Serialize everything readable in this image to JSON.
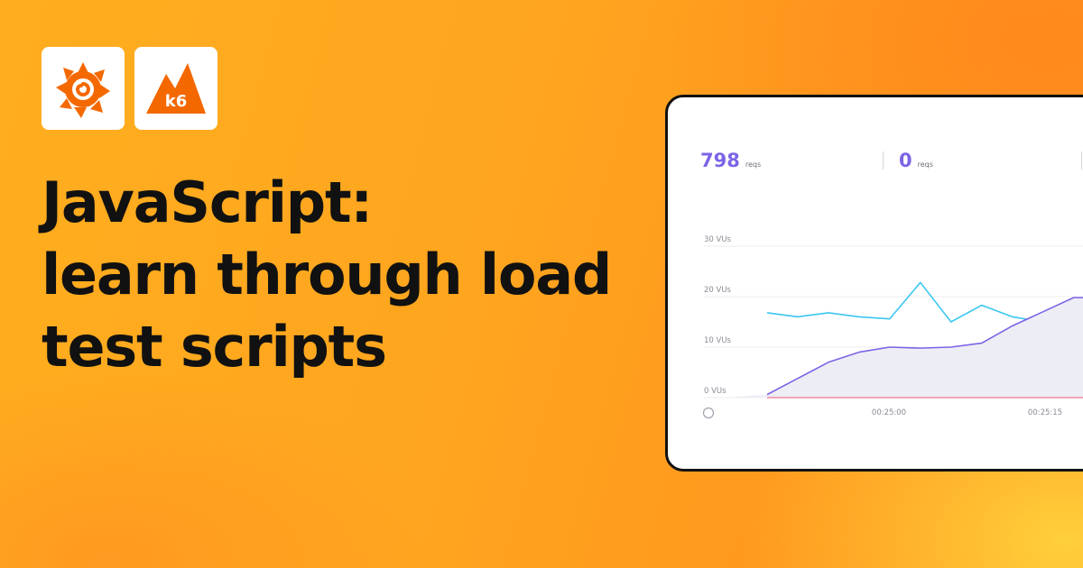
{
  "logos": {
    "first": {
      "icon": "grafana-icon",
      "color": "#f46800"
    },
    "second": {
      "icon": "k6-icon",
      "text": "k6",
      "color": "#f46800"
    }
  },
  "headline": {
    "lines": [
      "JavaScript:",
      "learn through load",
      "test scripts"
    ]
  },
  "card": {
    "stats": [
      {
        "value": "798",
        "unit": "reqs"
      },
      {
        "value": "0",
        "unit": "reqs"
      }
    ]
  },
  "chart_data": {
    "type": "line",
    "title": "",
    "y_ticks": [
      "0 VUs",
      "10 VUs",
      "20 VUs",
      "30 VUs"
    ],
    "x_ticks": [
      "00:25:00",
      "00:25:15"
    ],
    "ylim": [
      0,
      30
    ],
    "grid": true,
    "series": [
      {
        "color": "#3cc7f0",
        "points": [
          [
            0,
            16.8
          ],
          [
            1,
            16.0
          ],
          [
            2,
            16.8
          ],
          [
            3,
            16.0
          ],
          [
            4,
            15.6
          ],
          [
            5,
            22.8
          ],
          [
            6,
            15.0
          ],
          [
            7,
            18.3
          ],
          [
            8,
            16.0
          ],
          [
            9,
            15.0
          ],
          [
            10,
            16.9
          ],
          [
            10.6,
            15.8
          ]
        ]
      },
      {
        "color": "#7d64e6",
        "fill": "#ededf5",
        "points": [
          [
            0,
            0.6
          ],
          [
            1,
            3.8
          ],
          [
            2,
            7.0
          ],
          [
            3,
            9.0
          ],
          [
            4,
            10.0
          ],
          [
            5,
            9.8
          ],
          [
            6,
            10.0
          ],
          [
            7,
            10.8
          ],
          [
            8,
            14.2
          ],
          [
            9,
            17.0
          ],
          [
            10,
            19.8
          ],
          [
            10.6,
            19.8
          ]
        ]
      },
      {
        "color": "#f08ca0",
        "points": [
          [
            0,
            0
          ],
          [
            10.6,
            0
          ]
        ]
      }
    ]
  }
}
